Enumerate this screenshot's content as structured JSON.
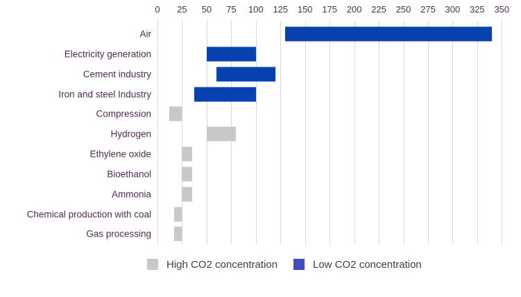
{
  "chart_data": {
    "type": "bar",
    "orientation": "horizontal",
    "title": "",
    "xlabel": "",
    "ylabel": "",
    "x_axis": {
      "min": 0,
      "max": 350,
      "tick_step": 25,
      "position": "top",
      "tick_labels": [
        "0",
        "25",
        "50",
        "75",
        "100",
        "125",
        "150",
        "175",
        "200",
        "225",
        "250",
        "275",
        "300",
        "325",
        "350"
      ]
    },
    "grid": "vertical",
    "categories": [
      "Air",
      "Electricity generation",
      "Cement industry",
      "Iron and steel Industry",
      "Compression",
      "Hydrogen",
      "Ethylene oxide",
      "Bioethanol",
      "Ammonia",
      "Chemical production with coal",
      "Gas processing"
    ],
    "bars": [
      {
        "category": "Air",
        "range": [
          130,
          340
        ],
        "series": "Low CO2 concentration"
      },
      {
        "category": "Electricity generation",
        "range": [
          50,
          100
        ],
        "series": "Low CO2 concentration"
      },
      {
        "category": "Cement industry",
        "range": [
          60,
          120
        ],
        "series": "Low CO2 concentration"
      },
      {
        "category": "Iron and steel Industry",
        "range": [
          37,
          100
        ],
        "series": "Low CO2 concentration"
      },
      {
        "category": "Compression",
        "range": [
          12,
          25
        ],
        "series": "High CO2 concentration"
      },
      {
        "category": "Hydrogen",
        "range": [
          50,
          80
        ],
        "series": "High CO2 concentration"
      },
      {
        "category": "Ethylene oxide",
        "range": [
          25,
          35
        ],
        "series": "High CO2 concentration"
      },
      {
        "category": "Bioethanol",
        "range": [
          25,
          35
        ],
        "series": "High CO2 concentration"
      },
      {
        "category": "Ammonia",
        "range": [
          25,
          35
        ],
        "series": "High CO2 concentration"
      },
      {
        "category": "Chemical production with coal",
        "range": [
          17,
          25
        ],
        "series": "High CO2 concentration"
      },
      {
        "category": "Gas processing",
        "range": [
          17,
          25
        ],
        "series": "High CO2 concentration"
      }
    ],
    "legend": {
      "position": "bottom",
      "items": [
        {
          "label": "High CO2 concentration",
          "swatch_color": "#c8c8c8"
        },
        {
          "label": "Low CO2 concentration",
          "swatch_color": "#3f4dc5"
        }
      ]
    },
    "colors": {
      "low_co2_bar": "#0742b0",
      "high_co2_bar": "#c8c8c8",
      "gridline": "#d9d9d9",
      "axis_label": "#4e2b55",
      "legend_text": "#3d3d3d"
    }
  }
}
